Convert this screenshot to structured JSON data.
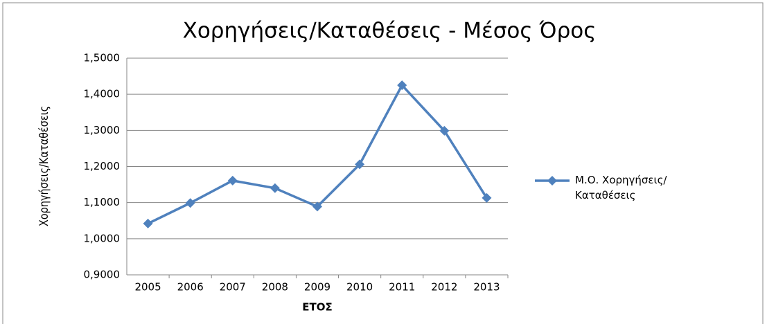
{
  "chart_data": {
    "type": "line",
    "title": "Χορηγήσεις/Καταθέσεις - Μέσος Όρος",
    "x_label": "ΕΤΟΣ",
    "y_label": "Χορηγήσεις/Καταθέσεις",
    "categories": [
      "2005",
      "2006",
      "2007",
      "2008",
      "2009",
      "2010",
      "2011",
      "2012",
      "2013"
    ],
    "series": [
      {
        "name": "Μ.Ο. Χορηγήσεις/Καταθέσεις",
        "color": "#4f81bd",
        "values": [
          1.042,
          1.099,
          1.161,
          1.14,
          1.089,
          1.206,
          1.425,
          1.299,
          1.113
        ]
      }
    ],
    "ylim": [
      0.9,
      1.5
    ],
    "yticks": [
      {
        "value": 0.9,
        "label": "0,9000"
      },
      {
        "value": 1.0,
        "label": "1,0000"
      },
      {
        "value": 1.1,
        "label": "1,1000"
      },
      {
        "value": 1.2,
        "label": "1,2000"
      },
      {
        "value": 1.3,
        "label": "1,3000"
      },
      {
        "value": 1.4,
        "label": "1,4000"
      },
      {
        "value": 1.5,
        "label": "1,5000"
      }
    ],
    "grid": true,
    "legend": "right"
  }
}
